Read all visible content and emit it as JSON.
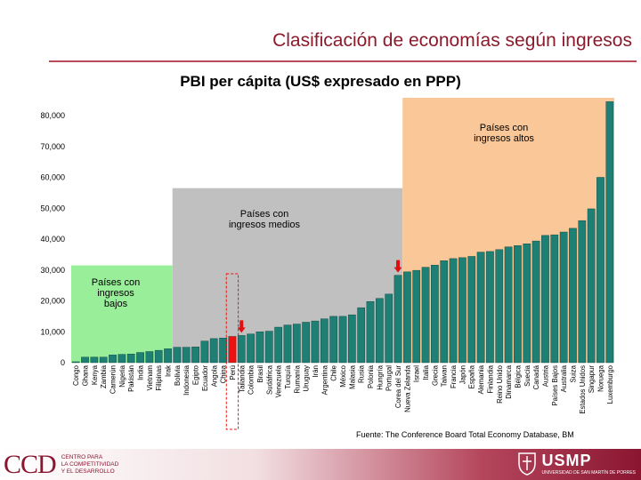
{
  "slide_title": "Clasificación de economías según ingresos",
  "source": "Fuente: The Conference Board Total Economy Database, BM",
  "footer": {
    "ccd_mark": "CCD",
    "ccd_lines": [
      "CENTRO PARA",
      "LA COMPETITIVIDAD",
      "Y EL DESARROLLO"
    ],
    "usmp_name": "USMP",
    "usmp_sub": "UNIVERSIDAD DE SAN MARTÍN DE PORRES"
  },
  "colors": {
    "bar": "#1e7f74",
    "highlight_bar": "#ee1111",
    "low_band": "#99ee99",
    "mid_band": "#c0c0c0",
    "high_band": "#fac898",
    "arrow": "#dd1111",
    "title": "#8b1a2b"
  },
  "chart_data": {
    "type": "bar",
    "title": "PBI per cápita (US$ expresado en PPP)",
    "ylim": [
      0,
      80000
    ],
    "yticks": [
      "0",
      "10,000",
      "20,000",
      "30,000",
      "40,000",
      "50,000",
      "60,000",
      "70,000",
      "80,000"
    ],
    "ytick_values": [
      0,
      10000,
      20000,
      30000,
      40000,
      50000,
      60000,
      70000,
      80000
    ],
    "categories": [
      "Congo",
      "Ghana",
      "Kenya",
      "Zambia",
      "Camerún",
      "Nigeria",
      "Pakistán",
      "India",
      "Vietnam",
      "Filipinas",
      "Irak",
      "Bolivia",
      "Indonesia",
      "Egipto",
      "Ecuador",
      "Angola",
      "China",
      "Perú",
      "Tailandia",
      "Colombia",
      "Brasil",
      "Sudáfrica",
      "Venezuela",
      "Turquía",
      "Rumanía",
      "Uruguay",
      "Irán",
      "Argentina",
      "Chile",
      "México",
      "Malasia",
      "Rusia",
      "Polonia",
      "Hungría",
      "Portugal",
      "Corea del Sur",
      "Nueva Zelanda",
      "Israel",
      "Italia",
      "Grecia",
      "Taiwan",
      "Francia",
      "Japón",
      "España",
      "Alemania",
      "Finlandia",
      "Reino Unido",
      "Dinamarca",
      "Bélgica",
      "Suecia",
      "Canadá",
      "Austria",
      "Países Bajos",
      "Australia",
      "Suiza",
      "Estados Unidos",
      "Singapur",
      "Noruega",
      "Luxemburgo"
    ],
    "values": [
      300,
      1800,
      1800,
      1800,
      2500,
      2700,
      2800,
      3300,
      3600,
      4000,
      4500,
      5000,
      5000,
      5100,
      7000,
      7800,
      8000,
      8500,
      8800,
      9300,
      10000,
      10200,
      11500,
      12200,
      12500,
      13100,
      13500,
      14200,
      15000,
      15000,
      15500,
      17800,
      19800,
      20800,
      22200,
      28300,
      29400,
      29900,
      30900,
      31600,
      33000,
      33700,
      34000,
      34400,
      35800,
      36000,
      36600,
      37500,
      37900,
      38500,
      39400,
      41200,
      41400,
      42300,
      43500,
      46000,
      49800,
      60000,
      84500
    ],
    "highlight_index": 17,
    "annotations": [
      {
        "text": "Países con ingresos bajos",
        "lines": [
          "Países con",
          "ingresos",
          "bajos"
        ]
      },
      {
        "text": "Países con ingresos medios",
        "lines": [
          "Países con",
          "ingresos medios"
        ]
      },
      {
        "text": "Países con ingresos altos",
        "lines": [
          "Países con",
          "ingresos altos"
        ]
      }
    ],
    "bands": [
      {
        "label": "Países con ingresos bajos",
        "from_index": 0,
        "to_index": 10,
        "top_value": 31500
      },
      {
        "label": "Países con ingresos medios",
        "from_index": 11,
        "to_index": 35,
        "top_value": 56500
      },
      {
        "label": "Países con ingresos altos",
        "from_index": 36,
        "to_index": 58,
        "top_value": 86500
      }
    ],
    "arrow_indices": [
      18,
      35
    ],
    "grid": false,
    "legend": "none"
  }
}
